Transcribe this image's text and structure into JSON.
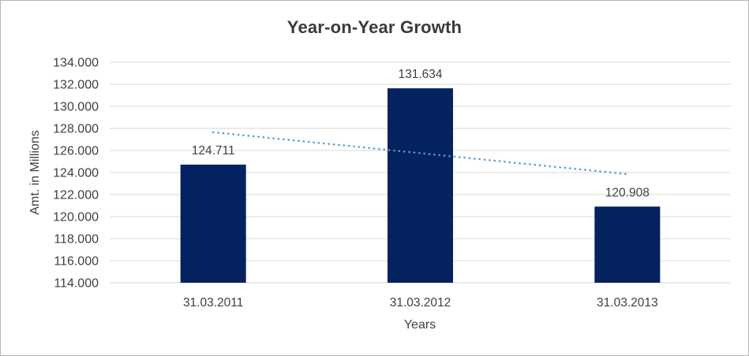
{
  "window": {
    "background": "#ffffff",
    "border_color": "#b5b5b5"
  },
  "chart_data": {
    "type": "bar",
    "title": "Year-on-Year Growth",
    "xlabel": "Years",
    "ylabel": "Amt. in Millions",
    "categories": [
      "31.03.2011",
      "31.03.2012",
      "31.03.2013"
    ],
    "values": [
      124.711,
      131.634,
      120.908
    ],
    "value_labels": [
      "124.711",
      "131.634",
      "120.908"
    ],
    "ylim": [
      114,
      134
    ],
    "ytick_step": 2,
    "ytick_labels": [
      "134.000",
      "132.000",
      "130.000",
      "128.000",
      "126.000",
      "124.000",
      "122.000",
      "120.000",
      "118.000",
      "116.000",
      "114.000"
    ],
    "grid": true,
    "legend": "none",
    "bar_color": "#03225F",
    "gridline_color": "#D9D9D9",
    "label_color": "#404040",
    "title_color": "#3a3a3a",
    "trendline": {
      "style": "dotted",
      "color": "#5B9BD5",
      "start_value": 127.65,
      "end_value": 123.85
    }
  }
}
